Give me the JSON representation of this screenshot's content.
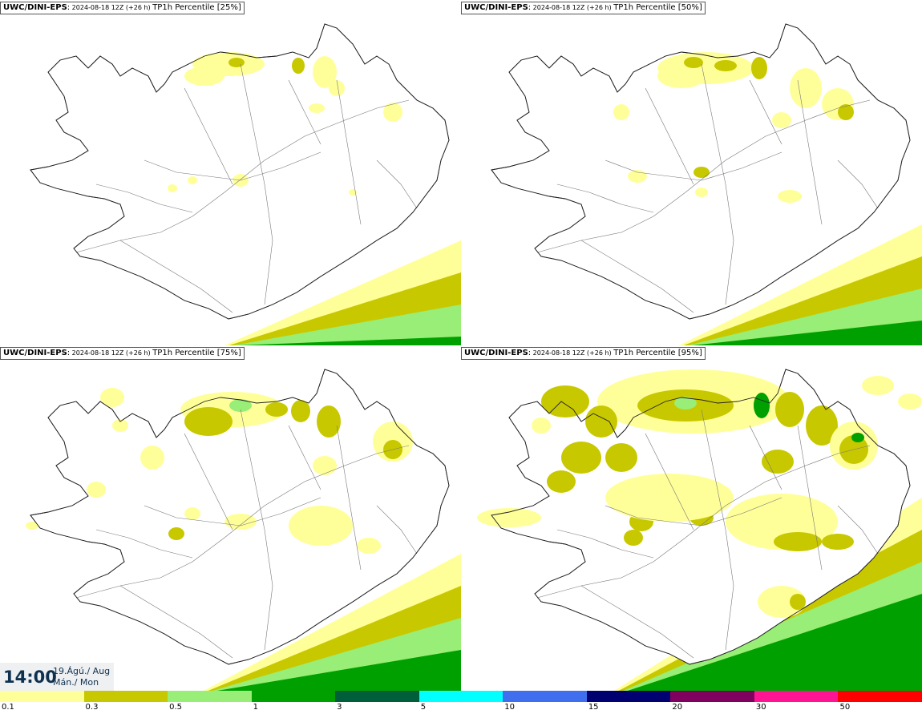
{
  "panels": [
    {
      "model": "UWC/DINI-EPS",
      "sep": ":",
      "run": "2024-08-18 12Z (+26 h)",
      "field": "TP1h Percentile [25%]"
    },
    {
      "model": "UWC/DINI-EPS",
      "sep": ":",
      "run": "2024-08-18 12Z (+26 h)",
      "field": "TP1h Percentile [50%]"
    },
    {
      "model": "UWC/DINI-EPS",
      "sep": ":",
      "run": "2024-08-18 12Z (+26 h)",
      "field": "TP1h Percentile [75%]"
    },
    {
      "model": "UWC/DINI-EPS",
      "sep": ":",
      "run": "2024-08-18 12Z (+26 h)",
      "field": "TP1h Percentile [95%]"
    }
  ],
  "valid_time": {
    "time": "14:00",
    "date_line1": "19.Ágú./ Aug",
    "date_line2": "Mán./ Mon"
  },
  "legend": {
    "colors": [
      "#ffff99",
      "#c8c800",
      "#99ee77",
      "#00a000",
      "#005f3a",
      "#00ffff",
      "#3f6fef",
      "#000070",
      "#800060",
      "#ff1493",
      "#ff0000"
    ],
    "ticks": [
      "0.1",
      "0.3",
      "0.5",
      "1",
      "3",
      "5",
      "10",
      "15",
      "20",
      "30",
      "50"
    ]
  }
}
